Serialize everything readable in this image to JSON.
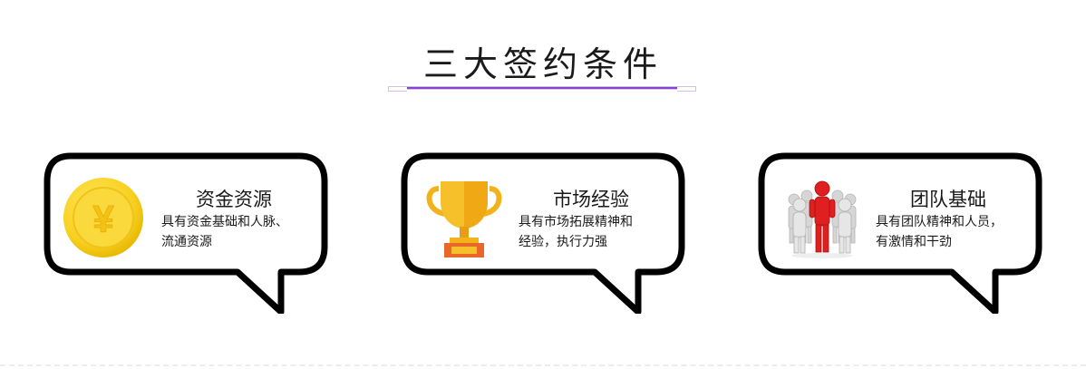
{
  "title": "三大签约条件",
  "accent_color": "#8a3fd1",
  "cards": [
    {
      "icon": "yuan-coin-icon",
      "heading": "资金资源",
      "desc_line1": "具有资金基础和人脉、",
      "desc_line2": "流通资源",
      "coin_symbol": "¥"
    },
    {
      "icon": "trophy-icon",
      "heading": "市场经验",
      "desc_line1": "具有市场拓展精神和",
      "desc_line2": "经验，执行力强"
    },
    {
      "icon": "team-people-icon",
      "heading": "团队基础",
      "desc_line1": "具有团队精神和人员，",
      "desc_line2": "有激情和干劲"
    }
  ]
}
